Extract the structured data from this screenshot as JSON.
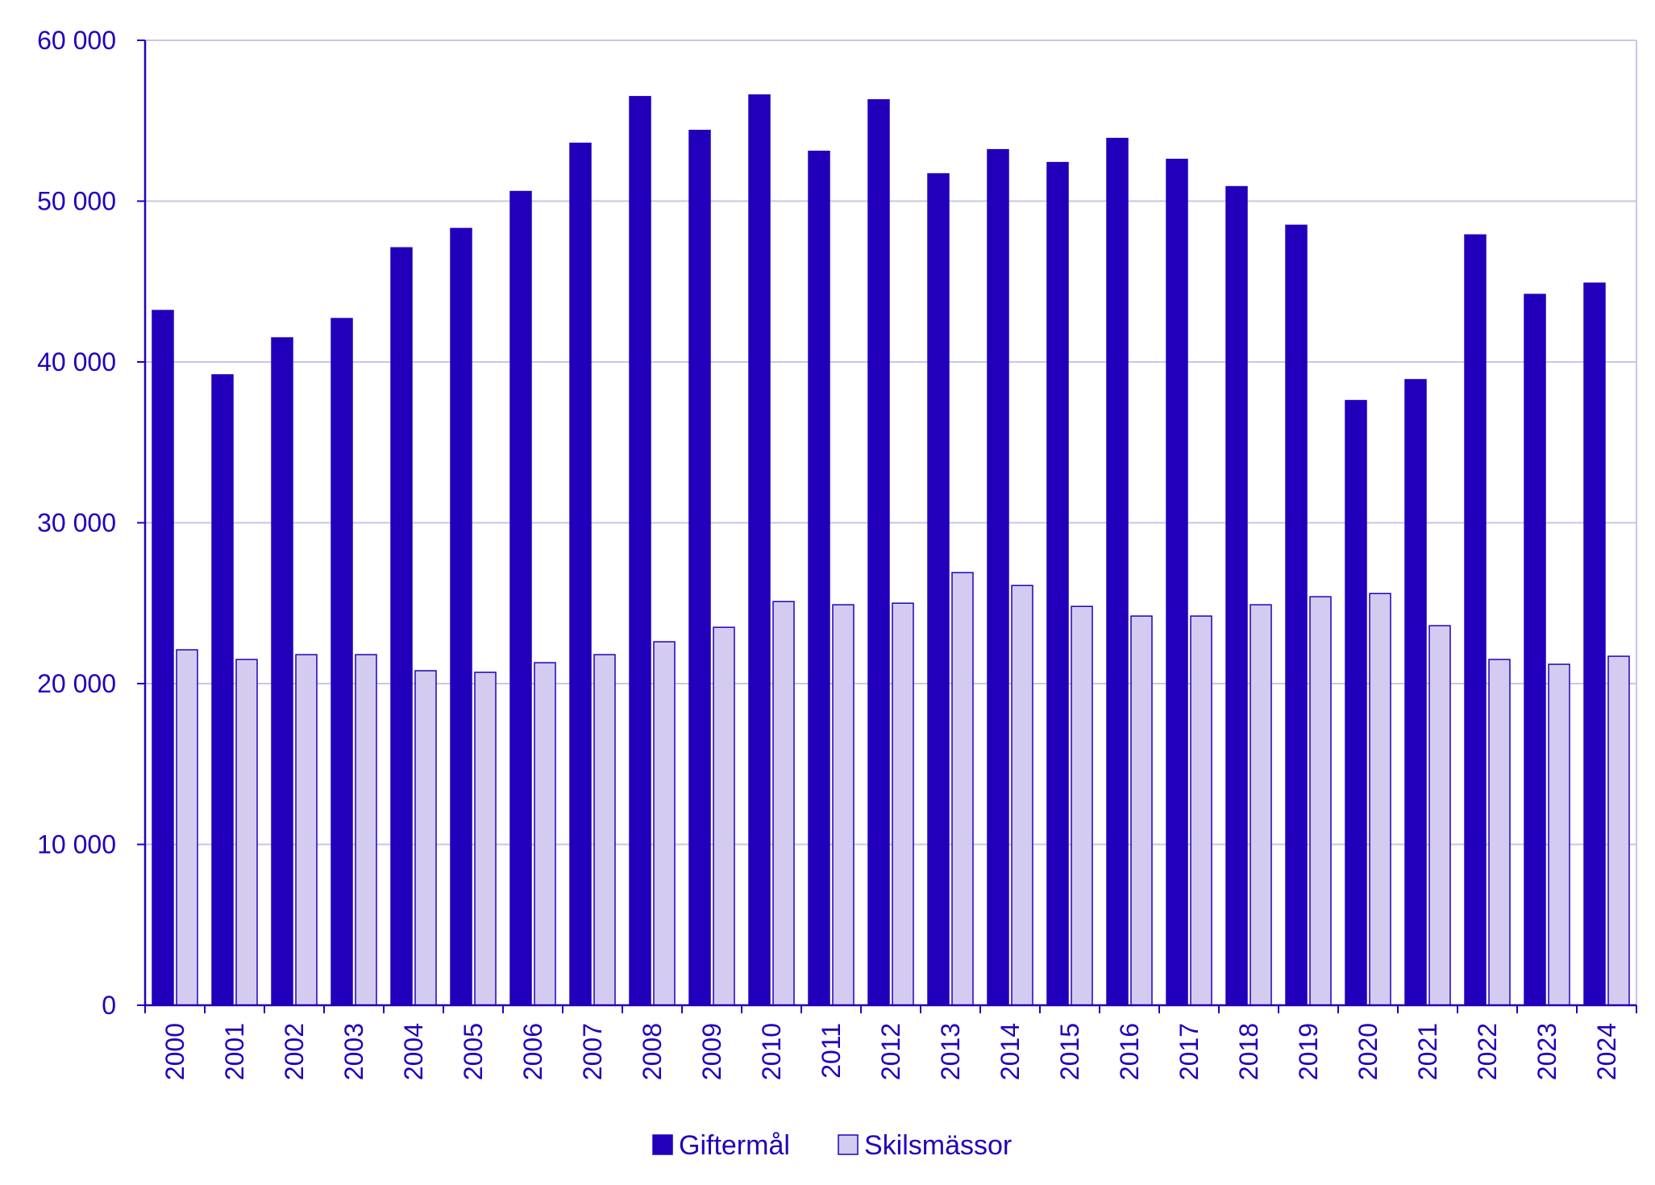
{
  "chart_data": {
    "type": "bar",
    "title": "",
    "xlabel": "",
    "ylabel": "",
    "ylim": [
      0,
      60000
    ],
    "y_ticks": [
      0,
      10000,
      20000,
      30000,
      40000,
      50000,
      60000
    ],
    "y_tick_labels": [
      "0",
      "10 000",
      "20 000",
      "30 000",
      "40 000",
      "50 000",
      "60 000"
    ],
    "grid": true,
    "legend_position": "bottom-center",
    "categories": [
      "2000",
      "2001",
      "2002",
      "2003",
      "2004",
      "2005",
      "2006",
      "2007",
      "2008",
      "2009",
      "2010",
      "2011",
      "2012",
      "2013",
      "2014",
      "2015",
      "2016",
      "2017",
      "2018",
      "2019",
      "2020",
      "2021",
      "2022",
      "2023",
      "2024"
    ],
    "series": [
      {
        "name": "Giftermål",
        "color": "#2200bb",
        "values": [
          43200,
          39200,
          41500,
          42700,
          47100,
          48300,
          50600,
          53600,
          56500,
          54400,
          56600,
          53100,
          56300,
          51700,
          53200,
          52400,
          53900,
          52600,
          50900,
          48500,
          37600,
          38900,
          47900,
          44200,
          44900
        ]
      },
      {
        "name": "Skilsmässor",
        "color": "#d3ccf0",
        "values": [
          22100,
          21500,
          21800,
          21800,
          20800,
          20700,
          21300,
          21800,
          22600,
          23500,
          25100,
          24900,
          25000,
          26900,
          26100,
          24800,
          24200,
          24200,
          24900,
          25400,
          25600,
          23600,
          21500,
          21200,
          21700
        ]
      }
    ],
    "colors": {
      "axis": "#2200bb",
      "grid": "#c9c6e8",
      "text": "#2200bb",
      "bar_outline": "#2200bb"
    }
  }
}
